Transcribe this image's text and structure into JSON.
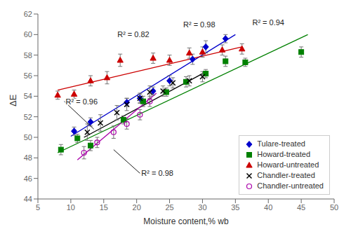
{
  "chart_data": {
    "type": "scatter",
    "title": "",
    "xlabel": "Moisture content,% wb",
    "ylabel": "ΔE",
    "xlim": [
      5,
      50
    ],
    "ylim": [
      44,
      62
    ],
    "xticks": [
      5,
      10,
      15,
      20,
      25,
      30,
      35,
      40,
      45,
      50
    ],
    "yticks": [
      44,
      46,
      48,
      50,
      52,
      54,
      56,
      58,
      60,
      62
    ],
    "grid": false,
    "legend": "lower right",
    "series": [
      {
        "name": "Tulare-treated",
        "color": "#0000CC",
        "marker": "diamond",
        "x": [
          10.5,
          13.0,
          18.5,
          20.5,
          22.5,
          25.0,
          28.5,
          30.5,
          33.5
        ],
        "values": [
          50.6,
          51.5,
          53.4,
          53.8,
          54.5,
          55.5,
          57.6,
          58.8,
          59.6
        ],
        "yerr": [
          0.4,
          0.4,
          0.4,
          0.4,
          0.4,
          0.5,
          0.5,
          0.6,
          0.4
        ],
        "fit_x": [
          10,
          35
        ],
        "fit_y": [
          50.1,
          60.0
        ]
      },
      {
        "name": "Howard-treated",
        "color": "#008000",
        "marker": "square",
        "x": [
          8.5,
          11.0,
          13.0,
          18.0,
          21.0,
          24.5,
          27.5,
          30.5,
          33.5,
          36.5,
          45.0
        ],
        "values": [
          48.8,
          49.9,
          49.2,
          51.7,
          53.5,
          54.4,
          55.4,
          56.2,
          57.4,
          57.3,
          58.3
        ],
        "yerr": [
          0.5,
          0.4,
          0.5,
          0.4,
          0.5,
          0.4,
          0.5,
          0.4,
          0.5,
          0.4,
          0.5
        ],
        "fit_x": [
          8,
          46
        ],
        "fit_y": [
          48.5,
          60.0
        ]
      },
      {
        "name": "Howard-untreated",
        "color": "#CC0000",
        "marker": "triangle",
        "x": [
          8.0,
          10.5,
          13.0,
          15.5,
          17.5,
          22.5,
          25.0,
          28.0,
          30.0,
          33.0,
          36.0
        ],
        "values": [
          54.1,
          54.2,
          55.5,
          55.8,
          57.5,
          57.7,
          57.5,
          58.2,
          58.3,
          58.5,
          58.6
        ],
        "yerr": [
          0.4,
          0.4,
          0.5,
          0.6,
          0.6,
          0.5,
          0.5,
          0.5,
          0.5,
          0.5,
          0.5
        ],
        "fit_x": [
          8,
          36
        ],
        "fit_y": [
          54.6,
          58.8
        ]
      },
      {
        "name": "Chandler-treated",
        "color": "#000000",
        "marker": "x",
        "x": [
          12.5,
          14.5,
          17.0,
          18.5,
          20.5,
          22.0,
          24.0,
          25.5,
          28.0,
          30.0
        ],
        "values": [
          50.5,
          51.4,
          52.4,
          53.2,
          53.8,
          54.4,
          54.5,
          55.3,
          55.5,
          55.9
        ],
        "yerr": [
          0.8,
          0.8,
          0.7,
          0.6,
          0.5,
          0.6,
          0.5,
          0.5,
          0.5,
          0.5
        ],
        "fit_x": [
          12,
          30
        ],
        "fit_y": [
          50.0,
          56.2
        ]
      },
      {
        "name": "Chandler-untreated",
        "color": "#AA00AA",
        "marker": "circle",
        "x": [
          12.0,
          14.0,
          16.5,
          18.5,
          20.5,
          22.0
        ],
        "values": [
          48.5,
          49.5,
          50.5,
          51.3,
          52.2,
          53.5
        ],
        "yerr": [
          0.6,
          0.5,
          0.6,
          0.5,
          0.5,
          0.5
        ],
        "fit_x": [
          11,
          23
        ],
        "fit_y": [
          47.8,
          54.3
        ]
      }
    ],
    "annotations": [
      {
        "text": "R² = 0.98",
        "x": 29.5,
        "y": 61.0
      },
      {
        "text": "R² = 0.94",
        "x": 40.0,
        "y": 61.2
      },
      {
        "text": "R² = 0.82",
        "x": 19.5,
        "y": 60.0
      },
      {
        "text": "R² = 0.96",
        "x": 9.0,
        "y": 53.5,
        "arrow_x": 13.5,
        "arrow_y": 50.8
      },
      {
        "text": "R² = 0.98",
        "x": 20.5,
        "y": 46.5,
        "arrow_x": 16.5,
        "arrow_y": 48.8
      }
    ]
  }
}
